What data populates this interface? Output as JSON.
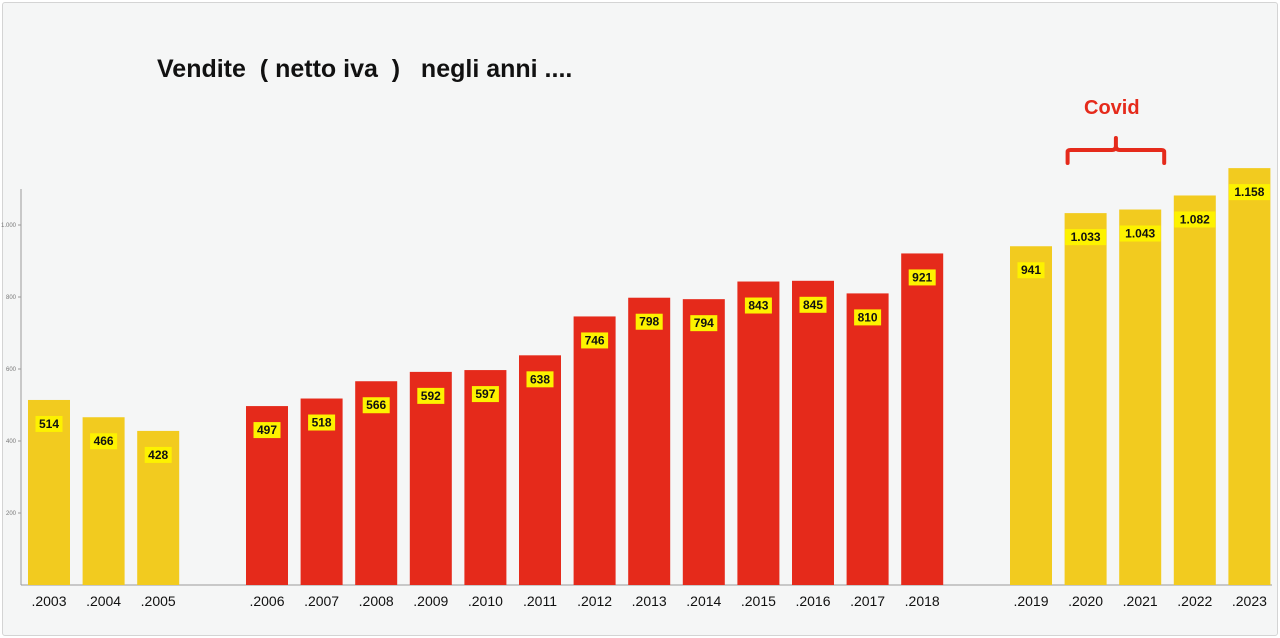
{
  "title": "Vendite  ( netto iva  )   negli anni ....",
  "annotation": {
    "text": "Covid",
    "color": "#e52a1b",
    "spans": [
      ".2020",
      ".2021"
    ]
  },
  "chart_data": {
    "type": "bar",
    "categories": [
      ".2003",
      ".2004",
      ".2005",
      ".2006",
      ".2007",
      ".2008",
      ".2009",
      ".2010",
      ".2011",
      ".2012",
      ".2013",
      ".2014",
      ".2015",
      ".2016",
      ".2017",
      ".2018",
      ".2019",
      ".2020",
      ".2021",
      ".2022",
      ".2023"
    ],
    "values": [
      514,
      466,
      428,
      497,
      518,
      566,
      592,
      597,
      638,
      746,
      798,
      794,
      843,
      845,
      810,
      921,
      941,
      1033,
      1043,
      1082,
      1158
    ],
    "labels": [
      "514",
      "466",
      "428",
      "497",
      "518",
      "566",
      "592",
      "597",
      "638",
      "746",
      "798",
      "794",
      "843",
      "845",
      "810",
      "921",
      "941",
      "1.033",
      "1.043",
      "1.082",
      "1.158"
    ],
    "bar_colors": [
      "#f2cb1f",
      "#f2cb1f",
      "#f2cb1f",
      "#e52a1b",
      "#e52a1b",
      "#e52a1b",
      "#e52a1b",
      "#e52a1b",
      "#e52a1b",
      "#e52a1b",
      "#e52a1b",
      "#e52a1b",
      "#e52a1b",
      "#e52a1b",
      "#e52a1b",
      "#e52a1b",
      "#f2cb1f",
      "#f2cb1f",
      "#f2cb1f",
      "#f2cb1f",
      "#f2cb1f"
    ],
    "label_background": "#fdf200",
    "y_ticks": [
      200,
      400,
      600,
      800,
      1000
    ],
    "y_tick_labels": [
      "200",
      "400",
      "600",
      "800",
      "1.000"
    ],
    "ylim": [
      0,
      1100
    ],
    "grid": false,
    "xlabel": "",
    "ylabel": ""
  }
}
